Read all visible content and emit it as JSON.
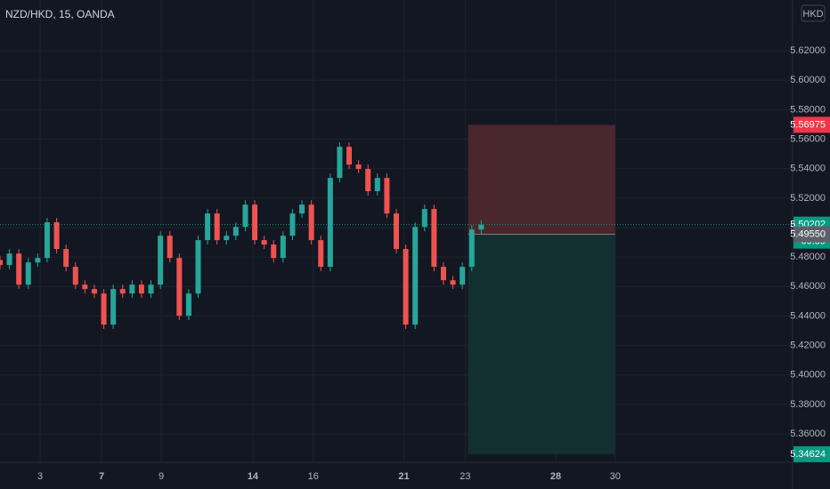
{
  "chart_data": {
    "type": "candlestick",
    "title": "NZD/HKD, 15, OANDA",
    "currency": "HKD",
    "background": "#131722",
    "up_color": "#26a69a",
    "down_color": "#ef5350",
    "grid": true,
    "ylim": [
      5.34074,
      5.65444
    ],
    "yticks": [
      {
        "value": 5.36,
        "label": "5.36000"
      },
      {
        "value": 5.38,
        "label": "5.38000"
      },
      {
        "value": 5.4,
        "label": "5.40000"
      },
      {
        "value": 5.42,
        "label": "5.42000"
      },
      {
        "value": 5.44,
        "label": "5.44000"
      },
      {
        "value": 5.46,
        "label": "5.46000"
      },
      {
        "value": 5.48,
        "label": "5.48000"
      },
      {
        "value": 5.5,
        "label": "5.50000"
      },
      {
        "value": 5.52,
        "label": "5.52000"
      },
      {
        "value": 5.54,
        "label": "5.54000"
      },
      {
        "value": 5.56,
        "label": "5.56000"
      },
      {
        "value": 5.58,
        "label": "5.58000"
      },
      {
        "value": 5.6,
        "label": "5.60000"
      },
      {
        "value": 5.62,
        "label": "5.62000"
      }
    ],
    "xlim": [
      0,
      84
    ],
    "xticks": [
      {
        "value": 4.25,
        "label": "3",
        "bold": false
      },
      {
        "value": 10.76,
        "label": "7",
        "bold": true
      },
      {
        "value": 17.09,
        "label": "9",
        "bold": false
      },
      {
        "value": 26.8,
        "label": "14",
        "bold": true
      },
      {
        "value": 33.2,
        "label": "16",
        "bold": false
      },
      {
        "value": 42.8,
        "label": "21",
        "bold": true
      },
      {
        "value": 49.3,
        "label": "23",
        "bold": false
      },
      {
        "value": 58.9,
        "label": "28",
        "bold": true
      },
      {
        "value": 65.2,
        "label": "30",
        "bold": false
      }
    ],
    "open": [
      5.478,
      5.4746,
      5.4824,
      5.4613,
      5.4764,
      5.4794,
      5.5036,
      5.4855,
      5.4734,
      5.4613,
      5.4583,
      5.4553,
      5.4342,
      5.4583,
      5.4553,
      5.4613,
      5.4553,
      5.4613,
      5.4945,
      5.4794,
      5.4402,
      5.4553,
      5.4915,
      5.5096,
      5.4915,
      5.4945,
      5.5005,
      5.5156,
      5.4915,
      5.4885,
      5.4794,
      5.4945,
      5.5096,
      5.5156,
      5.4915,
      5.4734,
      5.5337,
      5.5548,
      5.5428,
      5.5398,
      5.5247,
      5.5337,
      5.5096,
      5.4855,
      5.4342,
      5.5005,
      5.5126,
      5.4734,
      5.4643,
      5.4613,
      5.4734,
      5.4987
    ],
    "high": [
      5.481,
      5.4854,
      5.4854,
      5.4794,
      5.4824,
      5.5066,
      5.5066,
      5.4885,
      5.4764,
      5.4643,
      5.4613,
      5.4583,
      5.4613,
      5.4613,
      5.4643,
      5.4643,
      5.4643,
      5.4975,
      5.4975,
      5.4824,
      5.4583,
      5.4945,
      5.5126,
      5.5126,
      5.4975,
      5.5035,
      5.5186,
      5.5186,
      5.4945,
      5.4915,
      5.4975,
      5.5126,
      5.5186,
      5.5186,
      5.4945,
      5.5367,
      5.5578,
      5.5578,
      5.5458,
      5.5428,
      5.5367,
      5.5367,
      5.5126,
      5.4885,
      5.5035,
      5.5156,
      5.5156,
      5.4764,
      5.4673,
      5.4764,
      5.5017,
      5.505
    ],
    "low": [
      5.4716,
      5.4716,
      5.4583,
      5.4583,
      5.4734,
      5.4764,
      5.4825,
      5.4704,
      5.4583,
      5.4553,
      5.4523,
      5.4312,
      5.4312,
      5.4523,
      5.4523,
      5.4523,
      5.4523,
      5.4583,
      5.4764,
      5.4372,
      5.4372,
      5.4523,
      5.4885,
      5.4885,
      5.4885,
      5.4915,
      5.4975,
      5.4885,
      5.4855,
      5.4764,
      5.4764,
      5.4915,
      5.5066,
      5.4885,
      5.4704,
      5.4704,
      5.5307,
      5.5398,
      5.5368,
      5.5217,
      5.5217,
      5.5066,
      5.4825,
      5.4312,
      5.4312,
      5.4975,
      5.4704,
      5.4613,
      5.4583,
      5.4583,
      5.4704,
      5.4957
    ],
    "close": [
      5.4746,
      5.4824,
      5.4613,
      5.4764,
      5.4794,
      5.5036,
      5.4855,
      5.4734,
      5.4613,
      5.4583,
      5.4553,
      5.4342,
      5.4583,
      5.4553,
      5.4613,
      5.4553,
      5.4613,
      5.4945,
      5.4794,
      5.4402,
      5.4553,
      5.4915,
      5.5096,
      5.4915,
      5.4945,
      5.5005,
      5.5156,
      5.4915,
      5.4885,
      5.4794,
      5.4945,
      5.5096,
      5.5156,
      5.4915,
      5.4734,
      5.5337,
      5.5548,
      5.5428,
      5.5398,
      5.5247,
      5.5337,
      5.5096,
      5.4855,
      5.4342,
      5.5005,
      5.5126,
      5.4734,
      5.4643,
      5.4613,
      5.4734,
      5.4987,
      5.502
    ],
    "position": {
      "x_start": 49.6,
      "x_end": 65.2,
      "entry": 5.4955,
      "stop": 5.56975,
      "target": 5.34624,
      "stop_color": "#4a262d",
      "target_color": "#12302f"
    },
    "current_price": 5.50202,
    "countdown": "09:59",
    "price_labels": [
      {
        "value": 5.56975,
        "label": "5.56975",
        "color": "#f23645"
      },
      {
        "value": 5.50202,
        "label": "5.50202",
        "color": "#089981"
      },
      {
        "value": 5.4955,
        "label": "5.49550",
        "color": "#5d606b"
      },
      {
        "value": 5.34624,
        "label": "5.34624",
        "color": "#089981"
      }
    ]
  }
}
